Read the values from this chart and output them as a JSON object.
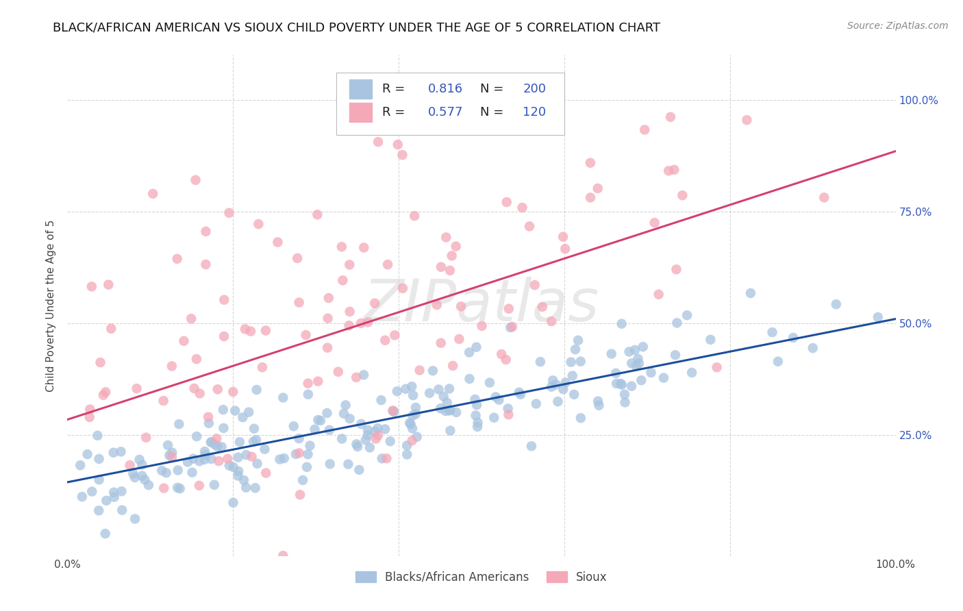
{
  "title": "BLACK/AFRICAN AMERICAN VS SIOUX CHILD POVERTY UNDER THE AGE OF 5 CORRELATION CHART",
  "source": "Source: ZipAtlas.com",
  "ylabel": "Child Poverty Under the Age of 5",
  "legend_label1": "Blacks/African Americans",
  "legend_label2": "Sioux",
  "R1": 0.816,
  "N1": 200,
  "R2": 0.577,
  "N2": 120,
  "blue_color": "#A8C4E0",
  "pink_color": "#F4A8B8",
  "blue_line_color": "#1B4F9B",
  "pink_line_color": "#D44070",
  "blue_tick_color": "#3355BB",
  "xlim": [
    0,
    1
  ],
  "ylim": [
    -0.02,
    1.1
  ],
  "grid_yticks": [
    0.25,
    0.5,
    0.75,
    1.0
  ],
  "grid_xticks": [
    0.2,
    0.4,
    0.6,
    0.8
  ],
  "right_ytick_labels": [
    "25.0%",
    "50.0%",
    "75.0%",
    "100.0%"
  ],
  "watermark": "ZIPatlas",
  "background_color": "#FFFFFF",
  "grid_color": "#CCCCCC",
  "title_fontsize": 13,
  "axis_label_fontsize": 11,
  "legend_fontsize": 13,
  "source_fontsize": 10,
  "tick_fontsize": 11,
  "blue_line_intercept": 0.145,
  "blue_line_slope": 0.365,
  "pink_line_intercept": 0.285,
  "pink_line_slope": 0.6
}
